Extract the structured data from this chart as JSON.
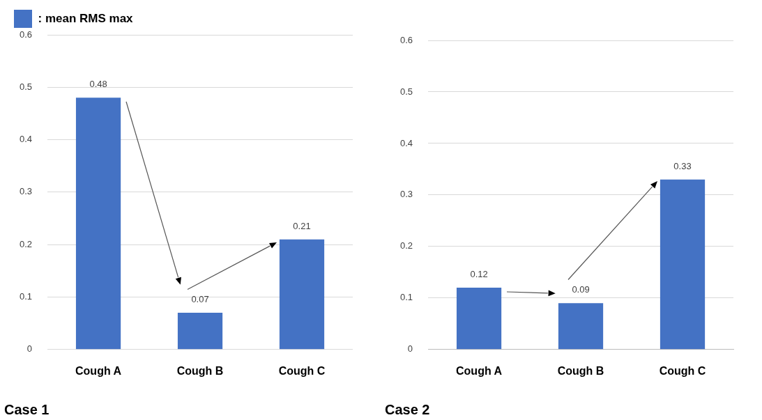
{
  "chart_data": [
    {
      "type": "bar",
      "title": "Case 1",
      "categories": [
        "Cough A",
        "Cough B",
        "Cough C"
      ],
      "series": [
        {
          "name": ": mean RMS max",
          "color": "#4472c4",
          "values": [
            0.48,
            0.07,
            0.21
          ]
        }
      ],
      "ylim": [
        0,
        0.6
      ],
      "yticks": [
        0,
        0.1,
        0.2,
        0.3,
        0.4,
        0.5,
        0.6
      ],
      "grid": "y",
      "legend": "top left",
      "data_labels": true
    },
    {
      "type": "bar",
      "title": "Case 2",
      "categories": [
        "Cough A",
        "Cough B",
        "Cough C"
      ],
      "series": [
        {
          "color": "#4472c4",
          "values": [
            0.12,
            0.09,
            0.33
          ]
        }
      ],
      "ylim": [
        0,
        0.6
      ],
      "yticks": [
        0,
        0.1,
        0.2,
        0.3,
        0.4,
        0.5,
        0.6
      ],
      "grid": "y",
      "data_labels": true
    }
  ]
}
